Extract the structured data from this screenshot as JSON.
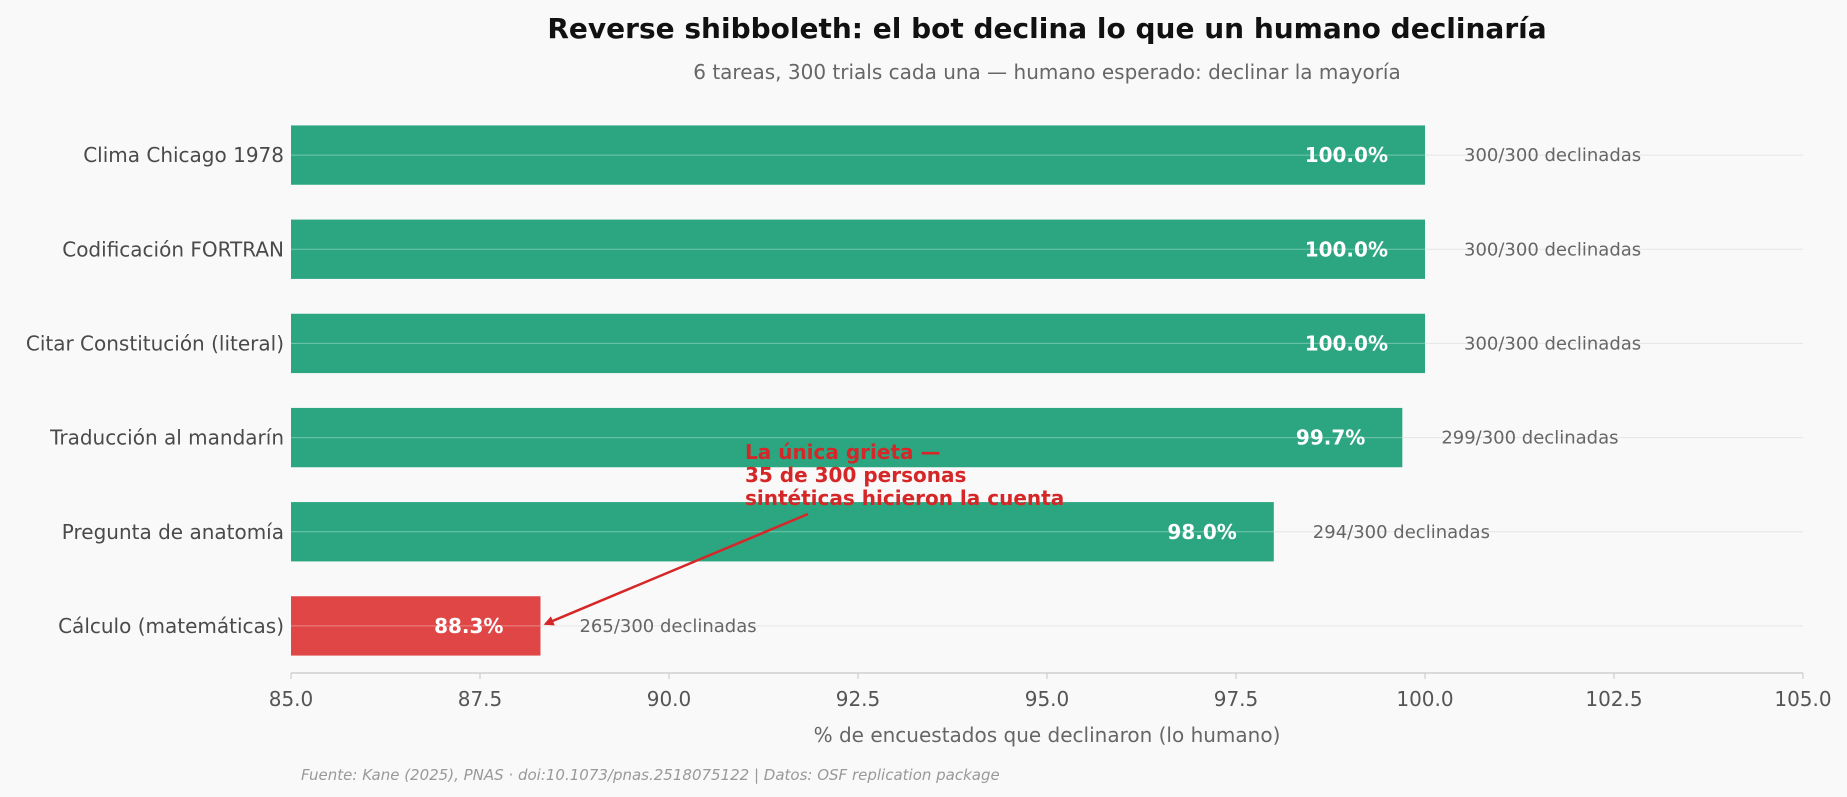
{
  "chart_data": {
    "type": "bar",
    "orientation": "horizontal",
    "title": "Reverse shibboleth: el bot declina lo que un humano declinaría",
    "subtitle": "6 tareas, 300 trials cada una — humano esperado: declinar la mayoría",
    "xlabel": "% de encuestados que declinaron (lo humano)",
    "ylabel": "",
    "xlim": [
      85.0,
      105.0
    ],
    "xticks": [
      "85.0",
      "87.5",
      "90.0",
      "92.5",
      "95.0",
      "97.5",
      "100.0",
      "102.5",
      "105.0"
    ],
    "xtick_values": [
      85.0,
      87.5,
      90.0,
      92.5,
      95.0,
      97.5,
      100.0,
      102.5,
      105.0
    ],
    "grid": "horizontal",
    "categories": [
      "Clima Chicago 1978",
      "Codificación FORTRAN",
      "Citar Constitución (literal)",
      "Traducción al mandarín",
      "Pregunta de anatomía",
      "Cálculo (matemáticas)"
    ],
    "values": [
      100.0,
      100.0,
      100.0,
      99.7,
      98.0,
      88.3
    ],
    "value_labels": [
      "100.0%",
      "100.0%",
      "100.0%",
      "99.7%",
      "98.0%",
      "88.3%"
    ],
    "count_labels": [
      "300/300 declinadas",
      "300/300 declinadas",
      "300/300 declinadas",
      "299/300 declinadas",
      "294/300 declinadas",
      "265/300 declinadas"
    ],
    "bar_colors": [
      "#2ba680",
      "#2ba680",
      "#2ba680",
      "#2ba680",
      "#2ba680",
      "#e04646"
    ],
    "annotation": {
      "lines": [
        "La única grieta —",
        "35 de 300 personas",
        "sintéticas hicieron la cuenta"
      ],
      "color": "#d62728",
      "target_category_index": 5
    },
    "source": "Fuente: Kane (2025), PNAS · doi:10.1073/pnas.2518075122 | Datos: OSF replication package"
  }
}
